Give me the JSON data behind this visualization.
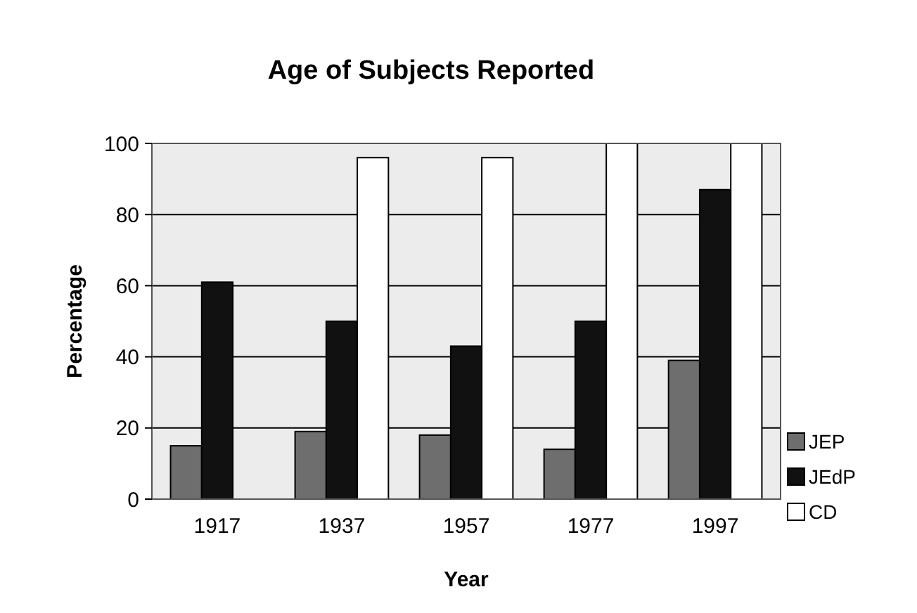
{
  "chart_data": {
    "type": "bar",
    "title": "Age of Subjects Reported",
    "xlabel": "Year",
    "ylabel": "Percentage",
    "categories": [
      "1917",
      "1937",
      "1957",
      "1977",
      "1997"
    ],
    "series": [
      {
        "name": "JEP",
        "color": "#6e6e6e",
        "values": [
          15,
          19,
          18,
          14,
          39
        ]
      },
      {
        "name": "JEdP",
        "color": "#111111",
        "values": [
          61,
          50,
          43,
          50,
          87
        ]
      },
      {
        "name": "CD",
        "color": "#ffffff",
        "values": [
          0,
          96,
          96,
          100,
          100
        ]
      }
    ],
    "ylim": [
      0,
      100
    ],
    "yticks": [
      0,
      20,
      40,
      60,
      80,
      100
    ],
    "grid": "y",
    "legend": "bottom right"
  }
}
